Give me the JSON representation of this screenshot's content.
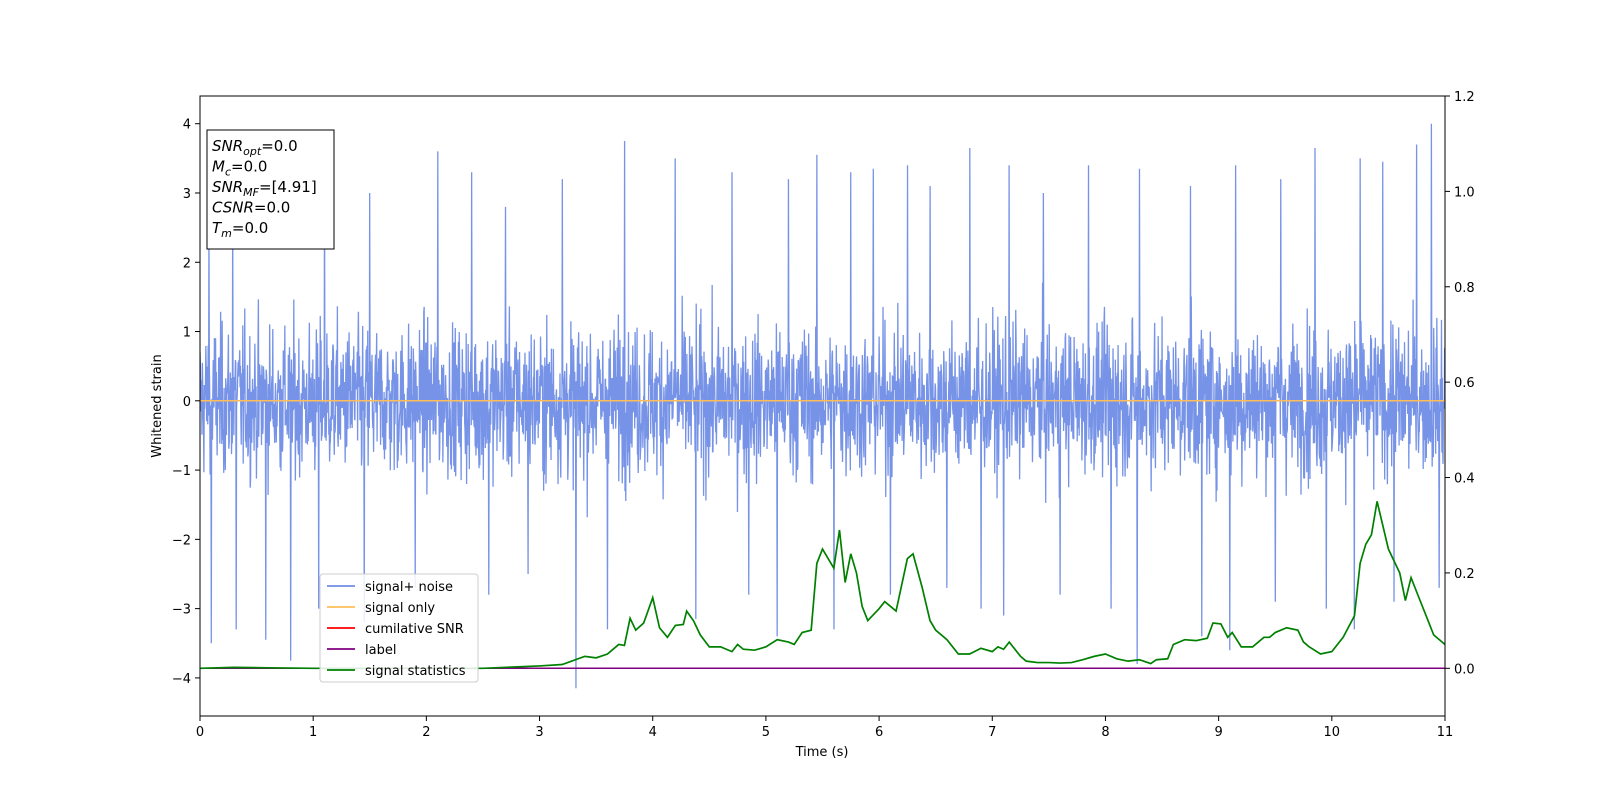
{
  "chart_data": {
    "type": "line",
    "xlabel": "Time (s)",
    "ylabel": "Whitened strain",
    "xlim": [
      0,
      11
    ],
    "ylim": [
      -4.55,
      4.4
    ],
    "y2lim": [
      -0.1,
      1.2
    ],
    "xticks": [
      "0",
      "1",
      "2",
      "3",
      "4",
      "5",
      "6",
      "7",
      "8",
      "9",
      "10",
      "11"
    ],
    "xtick_values": [
      0,
      1,
      2,
      3,
      4,
      5,
      6,
      7,
      8,
      9,
      10,
      11
    ],
    "yticks": [
      "4",
      "3",
      "2",
      "1",
      "0",
      "−1",
      "−2",
      "−3",
      "−4"
    ],
    "ytick_values": [
      4,
      3,
      2,
      1,
      0,
      -1,
      -2,
      -3,
      -4
    ],
    "y2ticks": [
      "0.0",
      "0.2",
      "0.4",
      "0.6",
      "0.8",
      "1.0",
      "1.2"
    ],
    "y2tick_values": [
      0.0,
      0.2,
      0.4,
      0.6,
      0.8,
      1.0,
      1.2
    ],
    "grid": false,
    "legend_location": "lower-left",
    "annotation": {
      "lines": [
        {
          "base": "SNR",
          "sub": "opt",
          "rest": "=0.0"
        },
        {
          "base": "M",
          "sub": "c",
          "rest": "=0.0"
        },
        {
          "base": "SNR",
          "sub": "MF",
          "rest": "=[4.91]"
        },
        {
          "base": "CSNR",
          "sub": "",
          "rest": "=0.0"
        },
        {
          "base": "T",
          "sub": "m",
          "rest": "=0.0"
        }
      ]
    },
    "series": [
      {
        "name": "signal+ noise",
        "color": "#6f8de6",
        "axis": "left",
        "kind": "noise",
        "band": [
          -2.0,
          2.2
        ],
        "peaks_up": [
          [
            0.08,
            2.5
          ],
          [
            0.29,
            2.7
          ],
          [
            0.8,
            3.6
          ],
          [
            1.1,
            3.4
          ],
          [
            1.5,
            3.0
          ],
          [
            2.1,
            3.6
          ],
          [
            2.4,
            3.3
          ],
          [
            2.7,
            2.8
          ],
          [
            3.2,
            3.2
          ],
          [
            3.75,
            3.75
          ],
          [
            4.2,
            3.5
          ],
          [
            4.7,
            3.3
          ],
          [
            5.2,
            3.2
          ],
          [
            5.45,
            3.55
          ],
          [
            5.75,
            3.3
          ],
          [
            5.95,
            3.35
          ],
          [
            6.25,
            3.4
          ],
          [
            6.45,
            3.1
          ],
          [
            6.8,
            3.65
          ],
          [
            7.15,
            3.4
          ],
          [
            7.45,
            3.0
          ],
          [
            7.85,
            3.4
          ],
          [
            8.05,
            3.1
          ],
          [
            8.3,
            3.35
          ],
          [
            8.75,
            3.1
          ],
          [
            9.15,
            3.4
          ],
          [
            9.55,
            3.2
          ],
          [
            9.85,
            3.65
          ],
          [
            10.25,
            3.5
          ],
          [
            10.45,
            3.45
          ],
          [
            10.75,
            3.7
          ],
          [
            10.88,
            4.0
          ]
        ],
        "peaks_down": [
          [
            0.1,
            -3.5
          ],
          [
            0.32,
            -3.3
          ],
          [
            0.58,
            -3.45
          ],
          [
            0.8,
            -3.75
          ],
          [
            1.05,
            -3.0
          ],
          [
            1.45,
            -3.2
          ],
          [
            1.9,
            -2.7
          ],
          [
            2.55,
            -2.8
          ],
          [
            2.9,
            -2.5
          ],
          [
            3.32,
            -4.15
          ],
          [
            3.6,
            -3.3
          ],
          [
            4.38,
            -3.15
          ],
          [
            4.85,
            -2.8
          ],
          [
            5.1,
            -3.4
          ],
          [
            5.6,
            -3.3
          ],
          [
            6.1,
            -2.8
          ],
          [
            6.6,
            -2.7
          ],
          [
            6.9,
            -3.0
          ],
          [
            7.1,
            -3.1
          ],
          [
            7.6,
            -2.8
          ],
          [
            8.05,
            -3.0
          ],
          [
            8.28,
            -3.8
          ],
          [
            8.85,
            -3.4
          ],
          [
            9.1,
            -3.6
          ],
          [
            9.5,
            -2.9
          ],
          [
            9.95,
            -3.0
          ],
          [
            10.2,
            -3.3
          ],
          [
            10.55,
            -2.9
          ],
          [
            10.95,
            -2.7
          ]
        ]
      },
      {
        "name": "signal only",
        "color": "#ffbe5a",
        "axis": "left",
        "kind": "line",
        "x": [
          0,
          11
        ],
        "y": [
          0,
          0
        ]
      },
      {
        "name": "cumilative SNR",
        "color": "#ff0000",
        "axis": "right",
        "kind": "line",
        "x": [
          0,
          11
        ],
        "y": [
          0,
          0
        ]
      },
      {
        "name": "label",
        "color": "#800080",
        "axis": "right",
        "kind": "line",
        "x": [
          0,
          11
        ],
        "y": [
          0,
          0
        ]
      },
      {
        "name": "signal statistics",
        "color": "#008000",
        "axis": "right",
        "kind": "line",
        "x": [
          0.0,
          0.3,
          0.6,
          1.0,
          1.5,
          2.0,
          2.5,
          3.0,
          3.2,
          3.4,
          3.5,
          3.6,
          3.7,
          3.75,
          3.8,
          3.85,
          3.92,
          4.0,
          4.06,
          4.13,
          4.2,
          4.27,
          4.3,
          4.36,
          4.42,
          4.5,
          4.6,
          4.7,
          4.75,
          4.8,
          4.9,
          5.0,
          5.1,
          5.2,
          5.25,
          5.32,
          5.4,
          5.45,
          5.5,
          5.6,
          5.65,
          5.7,
          5.75,
          5.8,
          5.85,
          5.9,
          6.0,
          6.05,
          6.1,
          6.15,
          6.25,
          6.3,
          6.38,
          6.45,
          6.5,
          6.6,
          6.7,
          6.8,
          6.9,
          7.0,
          7.05,
          7.1,
          7.15,
          7.25,
          7.3,
          7.4,
          7.5,
          7.6,
          7.7,
          7.8,
          7.9,
          8.0,
          8.1,
          8.2,
          8.3,
          8.4,
          8.45,
          8.55,
          8.6,
          8.7,
          8.8,
          8.9,
          8.95,
          9.02,
          9.08,
          9.12,
          9.2,
          9.3,
          9.4,
          9.45,
          9.5,
          9.6,
          9.7,
          9.75,
          9.8,
          9.9,
          10.0,
          10.1,
          10.2,
          10.25,
          10.3,
          10.35,
          10.4,
          10.5,
          10.6,
          10.65,
          10.7,
          10.75,
          10.85,
          10.9,
          11.0
        ],
        "y": [
          0.0,
          0.002,
          0.001,
          0.0,
          0.0,
          0.0,
          0.0,
          0.005,
          0.008,
          0.025,
          0.022,
          0.03,
          0.05,
          0.048,
          0.105,
          0.08,
          0.095,
          0.148,
          0.085,
          0.065,
          0.09,
          0.092,
          0.12,
          0.1,
          0.07,
          0.045,
          0.045,
          0.035,
          0.05,
          0.04,
          0.038,
          0.045,
          0.06,
          0.055,
          0.05,
          0.075,
          0.08,
          0.22,
          0.25,
          0.21,
          0.29,
          0.18,
          0.24,
          0.2,
          0.13,
          0.1,
          0.125,
          0.14,
          0.13,
          0.12,
          0.23,
          0.24,
          0.17,
          0.1,
          0.08,
          0.06,
          0.03,
          0.03,
          0.042,
          0.035,
          0.045,
          0.04,
          0.055,
          0.025,
          0.015,
          0.012,
          0.012,
          0.011,
          0.012,
          0.018,
          0.025,
          0.03,
          0.02,
          0.015,
          0.018,
          0.01,
          0.018,
          0.02,
          0.05,
          0.06,
          0.058,
          0.063,
          0.095,
          0.093,
          0.065,
          0.075,
          0.045,
          0.045,
          0.065,
          0.065,
          0.075,
          0.085,
          0.08,
          0.055,
          0.045,
          0.03,
          0.035,
          0.065,
          0.11,
          0.22,
          0.26,
          0.28,
          0.35,
          0.25,
          0.2,
          0.142,
          0.19,
          0.16,
          0.1,
          0.07,
          0.05
        ]
      }
    ]
  }
}
